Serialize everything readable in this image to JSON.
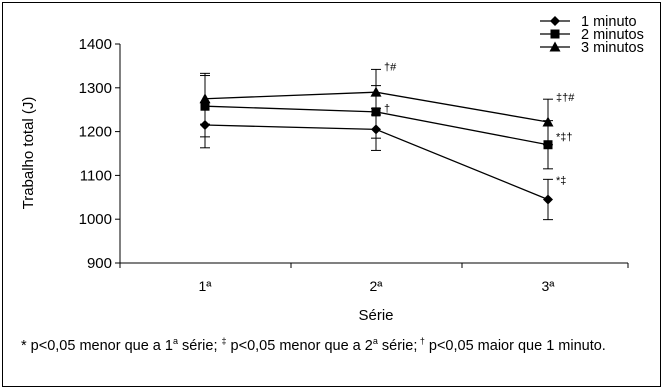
{
  "chart_data": {
    "type": "line",
    "categories": [
      "1ª",
      "2ª",
      "3ª"
    ],
    "xlabel": "Série",
    "ylabel": "Trabalho total (J)",
    "ylim": [
      900,
      1400
    ],
    "yticks": [
      900,
      1000,
      1100,
      1200,
      1300,
      1400
    ],
    "grid": false,
    "legend_position": "top-right",
    "series": [
      {
        "name": "1 minuto",
        "marker": "diamond",
        "values": [
          1215,
          1205,
          1045
        ],
        "errors": [
          52,
          48,
          46
        ]
      },
      {
        "name": "2 minutos",
        "marker": "square",
        "values": [
          1258,
          1245,
          1170
        ],
        "errors": [
          70,
          60,
          55
        ]
      },
      {
        "name": "3 minutos",
        "marker": "triangle",
        "values": [
          1275,
          1290,
          1222
        ],
        "errors": [
          58,
          52,
          52
        ]
      }
    ],
    "annotations": [
      {
        "category": "2ª",
        "value": 1340,
        "text": "†#"
      },
      {
        "category": "2ª",
        "value": 1245,
        "text": "†"
      },
      {
        "category": "3ª",
        "value": 1270,
        "text": "‡†#"
      },
      {
        "category": "3ª",
        "value": 1180,
        "text": "*‡†"
      },
      {
        "category": "3ª",
        "value": 1080,
        "text": "*‡"
      }
    ]
  },
  "caption": {
    "part1": "* p<0,05 menor que a 1",
    "sup1": "a",
    "part2": " série; ",
    "sup2": "‡",
    "part3": " p<0,05 menor que a 2",
    "sup3": "a",
    "part4": " série;",
    "sup4": " †",
    "part5": " p<0,05 maior que 1 minuto."
  }
}
